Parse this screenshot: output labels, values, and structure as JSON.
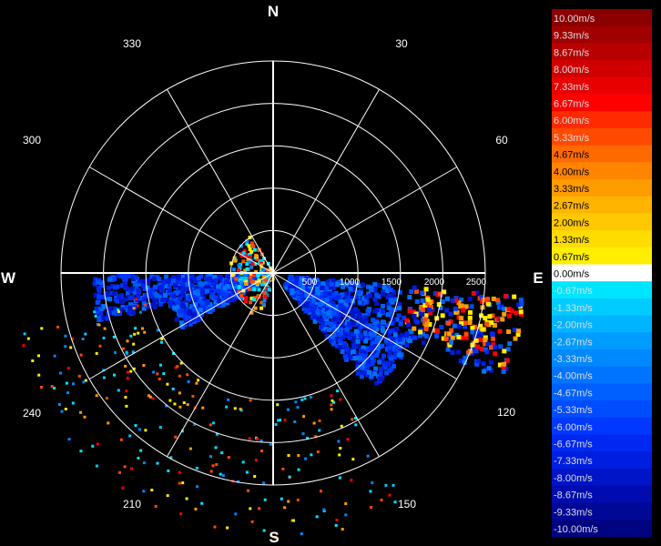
{
  "chart_data": {
    "type": "heatmap",
    "cardinals": {
      "north": "N",
      "south": "S",
      "east": "E",
      "west": "W"
    },
    "azimuth_labels": [
      "30",
      "60",
      "120",
      "150",
      "210",
      "240",
      "300",
      "330"
    ],
    "range_labels": [
      "500",
      "1000",
      "1500",
      "2000",
      "2500"
    ],
    "colorbar": [
      {
        "label": "10.00m/s",
        "color": "#8b0000"
      },
      {
        "label": "9.33m/s",
        "color": "#a00000"
      },
      {
        "label": "8.67m/s",
        "color": "#b80000"
      },
      {
        "label": "8.00m/s",
        "color": "#d00000"
      },
      {
        "label": "7.33m/s",
        "color": "#e80000"
      },
      {
        "label": "6.67m/s",
        "color": "#ff0000"
      },
      {
        "label": "6.00m/s",
        "color": "#ff2a00"
      },
      {
        "label": "5.33m/s",
        "color": "#ff4a00"
      },
      {
        "label": "4.67m/s",
        "color": "#ff6a00"
      },
      {
        "label": "4.00m/s",
        "color": "#ff8400"
      },
      {
        "label": "3.33m/s",
        "color": "#ff9c00"
      },
      {
        "label": "2.67m/s",
        "color": "#ffb400"
      },
      {
        "label": "2.00m/s",
        "color": "#ffc800"
      },
      {
        "label": "1.33m/s",
        "color": "#ffdc00"
      },
      {
        "label": "0.67m/s",
        "color": "#ffee00"
      },
      {
        "label": "0.00m/s",
        "color": "#ffffff"
      },
      {
        "label": "-0.67m/s",
        "color": "#00e5ff"
      },
      {
        "label": "-1.33m/s",
        "color": "#00ccff"
      },
      {
        "label": "-2.00m/s",
        "color": "#00b4ff"
      },
      {
        "label": "-2.67m/s",
        "color": "#009cff"
      },
      {
        "label": "-3.33m/s",
        "color": "#0088ff"
      },
      {
        "label": "-4.00m/s",
        "color": "#0074ff"
      },
      {
        "label": "-4.67m/s",
        "color": "#0060ff"
      },
      {
        "label": "-5.33m/s",
        "color": "#004cff"
      },
      {
        "label": "-6.00m/s",
        "color": "#0038ff"
      },
      {
        "label": "-6.67m/s",
        "color": "#0028f0"
      },
      {
        "label": "-7.33m/s",
        "color": "#001ee0"
      },
      {
        "label": "-8.00m/s",
        "color": "#0014c8"
      },
      {
        "label": "-8.67m/s",
        "color": "#000cb0"
      },
      {
        "label": "-9.33m/s",
        "color": "#000898"
      },
      {
        "label": "-10.00m/s",
        "color": "#000480"
      }
    ],
    "grid": true
  }
}
